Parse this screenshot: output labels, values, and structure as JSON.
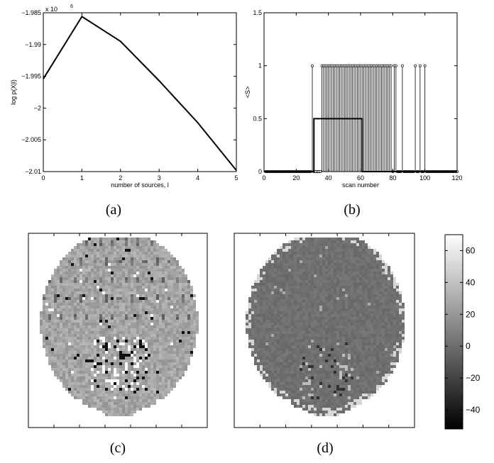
{
  "panels": {
    "a": {
      "caption": "(a)"
    },
    "b": {
      "caption": "(b)"
    },
    "c": {
      "caption": "(c)"
    },
    "d": {
      "caption": "(d)"
    }
  },
  "chart_data": [
    {
      "type": "line",
      "xlabel": "number of sources, l",
      "ylabel": "log p(X|l)",
      "y_multiplier": "x 10",
      "y_exponent": "6",
      "xlim": [
        0,
        5
      ],
      "ylim": [
        -2.01,
        -1.985
      ],
      "xticks": [
        "0",
        "1",
        "2",
        "3",
        "4",
        "5"
      ],
      "yticks": [
        "-1.985",
        "-1.99",
        "-1.995",
        "-2",
        "-2.005",
        "-2.01"
      ],
      "series": [
        {
          "x": [
            0,
            1,
            2,
            3,
            4,
            5
          ],
          "y": [
            -1.9954,
            -1.9856,
            -1.9895,
            -1.9957,
            -2.0023,
            -2.0098
          ]
        }
      ]
    },
    {
      "type": "line",
      "xlabel": "scan number",
      "ylabel": "<S>",
      "xlim": [
        0,
        120
      ],
      "ylim": [
        0,
        1.5
      ],
      "xticks": [
        "0",
        "20",
        "40",
        "60",
        "80",
        "100",
        "120"
      ],
      "yticks": [
        "0",
        "0.5",
        "1",
        "1.5"
      ],
      "stem_on": [
        30,
        36,
        37,
        38,
        39,
        40,
        41,
        42,
        43,
        44,
        45,
        46,
        47,
        48,
        49,
        50,
        51,
        52,
        53,
        54,
        55,
        56,
        57,
        58,
        59,
        60,
        61,
        62,
        63,
        64,
        65,
        66,
        67,
        68,
        69,
        70,
        71,
        72,
        73,
        74,
        75,
        76,
        77,
        78,
        79,
        81,
        82,
        86,
        94,
        97,
        100
      ],
      "stem_n": 120,
      "series": [
        {
          "x": [
            0,
            31,
            31,
            61,
            61,
            120
          ],
          "y": [
            0,
            0,
            0.5,
            0.5,
            0,
            0
          ]
        }
      ]
    },
    {
      "type": "heatmap",
      "colorbar_ticks": [
        "60",
        "40",
        "20",
        "0",
        "-20",
        "-40"
      ],
      "colorbar_values": [
        60,
        40,
        20,
        0,
        -20,
        -40
      ],
      "clim": [
        -52,
        70
      ]
    }
  ]
}
